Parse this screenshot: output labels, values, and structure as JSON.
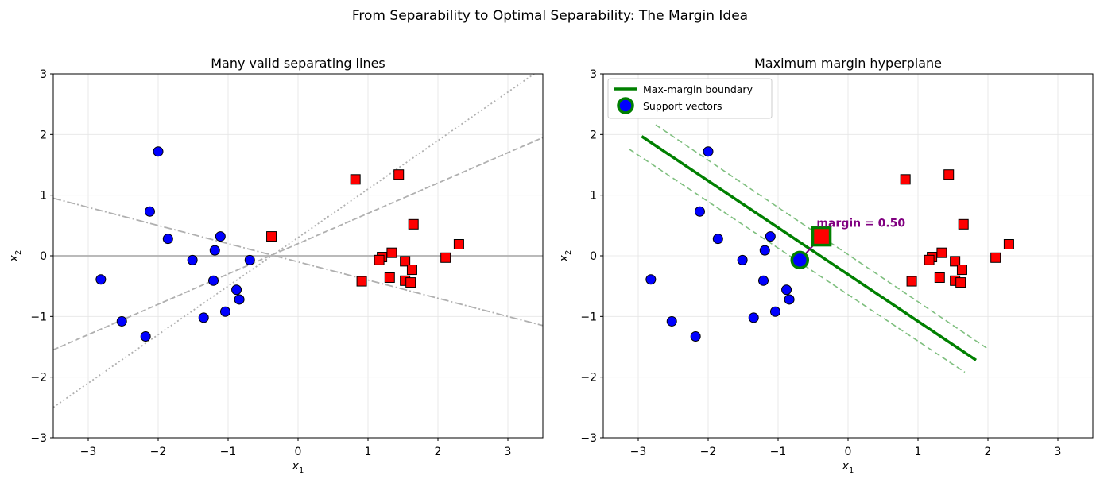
{
  "suptitle": "From Separability to Optimal Separability: The Margin Idea",
  "colors": {
    "class_a": "#0000ff",
    "class_b": "#ff0000",
    "boundary": "#008000",
    "margin_lines": "#7fbf7f",
    "candidate_lines": "#b0b0b0",
    "annotation": "#800080",
    "grid": "#e5e5e5"
  },
  "chart_data": [
    {
      "type": "scatter",
      "title": "Many valid separating lines",
      "xlabel": "x1",
      "ylabel": "x2",
      "xlim": [
        -3.5,
        3.5
      ],
      "ylim": [
        -3,
        3
      ],
      "xticks": [
        -3,
        -2,
        -1,
        0,
        1,
        2,
        3
      ],
      "yticks": [
        -3,
        -2,
        -1,
        0,
        1,
        2,
        3
      ],
      "grid": true,
      "series": [
        {
          "marker": "circle",
          "color": "#0000ff",
          "points": [
            [
              -2.0,
              1.72
            ],
            [
              -2.12,
              0.73
            ],
            [
              -1.86,
              0.28
            ],
            [
              -1.11,
              0.32
            ],
            [
              -1.51,
              -0.07
            ],
            [
              -1.19,
              0.09
            ],
            [
              -0.69,
              -0.07
            ],
            [
              -2.82,
              -0.39
            ],
            [
              -1.21,
              -0.41
            ],
            [
              -0.88,
              -0.56
            ],
            [
              -0.84,
              -0.72
            ],
            [
              -2.52,
              -1.08
            ],
            [
              -1.35,
              -1.02
            ],
            [
              -1.04,
              -0.92
            ],
            [
              -2.18,
              -1.33
            ]
          ]
        },
        {
          "marker": "square",
          "color": "#ff0000",
          "points": [
            [
              0.82,
              1.26
            ],
            [
              1.44,
              1.34
            ],
            [
              1.65,
              0.52
            ],
            [
              2.3,
              0.19
            ],
            [
              -0.38,
              0.32
            ],
            [
              1.34,
              0.05
            ],
            [
              1.2,
              -0.02
            ],
            [
              1.16,
              -0.07
            ],
            [
              1.53,
              -0.09
            ],
            [
              2.11,
              -0.03
            ],
            [
              1.63,
              -0.23
            ],
            [
              0.91,
              -0.42
            ],
            [
              1.31,
              -0.36
            ],
            [
              1.53,
              -0.41
            ],
            [
              1.61,
              -0.44
            ]
          ]
        }
      ],
      "lines": [
        {
          "slope": 0.0,
          "intercept": 0.0,
          "style": "solid"
        },
        {
          "slope": 0.5,
          "intercept": 0.2,
          "style": "dashed"
        },
        {
          "slope": 0.8,
          "intercept": 0.3,
          "style": "dotted"
        },
        {
          "slope": -0.3,
          "intercept": -0.1,
          "style": "dashdot"
        }
      ]
    },
    {
      "type": "scatter",
      "title": "Maximum margin hyperplane",
      "xlabel": "x1",
      "ylabel": "x2",
      "xlim": [
        -3.5,
        3.5
      ],
      "ylim": [
        -3,
        3
      ],
      "xticks": [
        -3,
        -2,
        -1,
        0,
        1,
        2,
        3
      ],
      "yticks": [
        -3,
        -2,
        -1,
        0,
        1,
        2,
        3
      ],
      "grid": true,
      "legend_position": "top-left",
      "legend": [
        "Max-margin boundary",
        "Support vectors"
      ],
      "series": [
        {
          "marker": "circle",
          "color": "#0000ff",
          "points": [
            [
              -2.0,
              1.72
            ],
            [
              -2.12,
              0.73
            ],
            [
              -1.86,
              0.28
            ],
            [
              -1.11,
              0.32
            ],
            [
              -1.51,
              -0.07
            ],
            [
              -1.19,
              0.09
            ],
            [
              -2.82,
              -0.39
            ],
            [
              -1.21,
              -0.41
            ],
            [
              -0.88,
              -0.56
            ],
            [
              -0.84,
              -0.72
            ],
            [
              -2.52,
              -1.08
            ],
            [
              -1.35,
              -1.02
            ],
            [
              -1.04,
              -0.92
            ],
            [
              -2.18,
              -1.33
            ]
          ]
        },
        {
          "marker": "square",
          "color": "#ff0000",
          "points": [
            [
              0.82,
              1.26
            ],
            [
              1.44,
              1.34
            ],
            [
              1.65,
              0.52
            ],
            [
              2.3,
              0.19
            ],
            [
              1.34,
              0.05
            ],
            [
              1.2,
              -0.02
            ],
            [
              1.16,
              -0.07
            ],
            [
              1.53,
              -0.09
            ],
            [
              2.11,
              -0.03
            ],
            [
              1.63,
              -0.23
            ],
            [
              0.91,
              -0.42
            ],
            [
              1.31,
              -0.36
            ],
            [
              1.53,
              -0.41
            ],
            [
              1.61,
              -0.44
            ]
          ]
        }
      ],
      "support_vectors": [
        {
          "marker": "circle",
          "color": "#0000ff",
          "point": [
            -0.69,
            -0.07
          ]
        },
        {
          "marker": "square",
          "color": "#ff0000",
          "point": [
            -0.38,
            0.32
          ]
        }
      ],
      "boundary": {
        "x_start": -2.95,
        "y_start": 1.97,
        "x_end": 1.83,
        "y_end": -1.72
      },
      "margin_upper": {
        "x_start": -2.75,
        "y_start": 2.16,
        "x_end": 1.98,
        "y_end": -1.52
      },
      "margin_lower": {
        "x_start": -3.13,
        "y_start": 1.76,
        "x_end": 1.67,
        "y_end": -1.92
      },
      "margin_connector": {
        "x_start": -0.69,
        "y_start": -0.07,
        "x_end": -0.38,
        "y_end": 0.32
      },
      "annotation": {
        "text": "margin = 0.50",
        "x": -0.45,
        "y": 0.48
      }
    }
  ]
}
